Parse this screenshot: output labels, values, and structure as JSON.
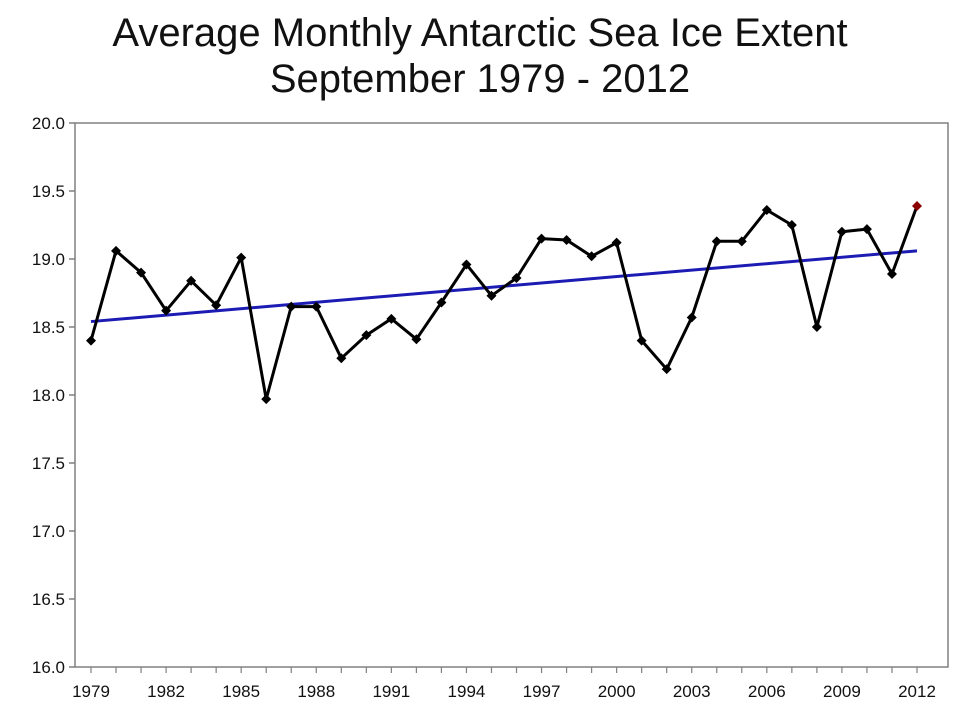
{
  "chart_data": {
    "type": "line",
    "title": "Average Monthly Antarctic Sea Ice Extent",
    "subtitle": "September 1979 - 2012",
    "xlabel": "",
    "ylabel": "",
    "ylim": [
      16.0,
      20.0
    ],
    "xlim": [
      1979,
      2012
    ],
    "y_ticks": [
      "16.0",
      "16.5",
      "17.0",
      "17.5",
      "18.0",
      "18.5",
      "19.0",
      "19.5",
      "20.0"
    ],
    "x_ticks": [
      "1979",
      "1982",
      "1985",
      "1988",
      "1991",
      "1994",
      "1997",
      "2000",
      "2003",
      "2006",
      "2009",
      "2012"
    ],
    "grid": false,
    "legend": "none",
    "series": [
      {
        "x": [
          1979,
          1980,
          1981,
          1982,
          1983,
          1984,
          1985,
          1986,
          1987,
          1988,
          1989,
          1990,
          1991,
          1992,
          1993,
          1994,
          1995,
          1996,
          1997,
          1998,
          1999,
          2000,
          2001,
          2002,
          2003,
          2004,
          2005,
          2006,
          2007,
          2008,
          2009,
          2010,
          2011,
          2012
        ],
        "values": [
          18.4,
          19.06,
          18.9,
          18.62,
          18.84,
          18.66,
          19.01,
          17.97,
          18.65,
          18.65,
          18.27,
          18.44,
          18.56,
          18.41,
          18.68,
          18.96,
          18.73,
          18.86,
          19.15,
          19.14,
          19.02,
          19.12,
          18.4,
          18.19,
          18.57,
          19.13,
          19.13,
          19.36,
          19.25,
          18.5,
          19.2,
          19.22,
          18.89,
          19.39
        ],
        "color": "#000000",
        "marker": "diamond",
        "last_point_color": "#8b0000"
      },
      {
        "type": "trend",
        "x": [
          1979,
          2012
        ],
        "values": [
          18.54,
          19.06
        ],
        "color": "#1c1cb4"
      }
    ]
  }
}
